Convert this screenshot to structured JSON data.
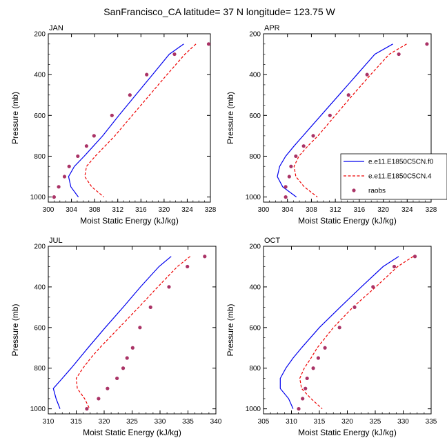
{
  "figure_title": "SanFrancisco_CA  latitude= 37 N longitude= 123.75 W",
  "colors": {
    "model_f": "#0000ee",
    "model_4": "#ee0000",
    "raobs": "#aa3366"
  },
  "legend": {
    "entries": [
      {
        "name": "e.e11.E1850C5CN.f0",
        "style": "solid",
        "color": "#0000ee"
      },
      {
        "name": "e.e11.E1850C5CN.4",
        "style": "dashed",
        "color": "#ee0000"
      },
      {
        "name": "raobs",
        "style": "marker",
        "color": "#aa3366"
      }
    ]
  },
  "chart_data": [
    {
      "type": "line",
      "panel_title": "JAN",
      "xlabel": "Moist Static Energy (kJ/kg)",
      "ylabel": "Pressure (mb)",
      "xlim": [
        300,
        328
      ],
      "ylim": [
        1025,
        200
      ],
      "xticks": [
        300,
        304,
        308,
        312,
        316,
        320,
        324,
        328
      ],
      "yticks": [
        200,
        400,
        600,
        800,
        1000
      ],
      "y": [
        250,
        300,
        400,
        500,
        600,
        700,
        750,
        800,
        850,
        900,
        950,
        1000
      ],
      "series": [
        {
          "name": "e.e11.E1850C5CN.f0",
          "style": "line",
          "x": [
            323.4,
            320.9,
            318.0,
            315.1,
            312.2,
            309.4,
            307.8,
            306.2,
            304.5,
            303.5,
            303.9,
            305.2
          ]
        },
        {
          "name": "e.e11.E1850C5CN.4",
          "style": "dashed",
          "x": [
            325.5,
            323.6,
            320.5,
            317.5,
            314.5,
            311.5,
            309.8,
            308.1,
            306.6,
            306.3,
            307.5,
            309.6
          ]
        },
        {
          "name": "raobs",
          "style": "scatter",
          "x": [
            327.7,
            321.8,
            317.0,
            314.1,
            311.0,
            307.9,
            306.6,
            305.1,
            303.6,
            302.8,
            301.8,
            301.0
          ]
        }
      ]
    },
    {
      "type": "line",
      "panel_title": "APR",
      "xlabel": "Moist Static Energy (kJ/kg)",
      "ylabel": "Pressure (mb)",
      "xlim": [
        300,
        328
      ],
      "ylim": [
        1025,
        200
      ],
      "xticks": [
        300,
        304,
        308,
        312,
        316,
        320,
        324,
        328
      ],
      "yticks": [
        200,
        400,
        600,
        800,
        1000
      ],
      "y": [
        250,
        300,
        400,
        500,
        600,
        700,
        750,
        800,
        850,
        900,
        950,
        1000
      ],
      "series": [
        {
          "name": "e.e11.E1850C5CN.f0",
          "style": "line",
          "x": [
            321.6,
            318.6,
            315.6,
            312.6,
            309.6,
            306.6,
            305.1,
            303.7,
            302.7,
            302.3,
            303.2,
            305.5
          ]
        },
        {
          "name": "e.e11.E1850C5CN.4",
          "style": "dashed",
          "x": [
            323.9,
            321.0,
            317.9,
            314.9,
            312.0,
            309.1,
            307.4,
            305.9,
            305.1,
            305.4,
            306.8,
            309.0
          ]
        },
        {
          "name": "raobs",
          "style": "scatter",
          "x": [
            327.3,
            322.6,
            317.3,
            314.2,
            311.1,
            308.3,
            306.7,
            305.4,
            304.6,
            304.3,
            303.7,
            303.7
          ]
        }
      ]
    },
    {
      "type": "line",
      "panel_title": "JUL",
      "xlabel": "Moist Static Energy (kJ/kg)",
      "ylabel": "Pressure (mb)",
      "xlim": [
        310,
        340
      ],
      "ylim": [
        1025,
        200
      ],
      "xticks": [
        310,
        315,
        320,
        325,
        330,
        335,
        340
      ],
      "yticks": [
        200,
        400,
        600,
        800,
        1000
      ],
      "y": [
        250,
        300,
        400,
        500,
        600,
        700,
        750,
        800,
        850,
        900,
        950,
        1000
      ],
      "series": [
        {
          "name": "e.e11.E1850C5CN.f0",
          "style": "line",
          "x": [
            332.0,
            329.8,
            326.5,
            323.4,
            320.2,
            317.1,
            315.6,
            314.1,
            312.5,
            310.9,
            311.4,
            312.1
          ]
        },
        {
          "name": "e.e11.E1850C5CN.4",
          "style": "dashed",
          "x": [
            335.4,
            333.1,
            329.6,
            326.2,
            322.7,
            319.2,
            317.6,
            316.2,
            315.0,
            315.2,
            316.5,
            317.4
          ]
        },
        {
          "name": "raobs",
          "style": "scatter",
          "x": [
            338.0,
            334.9,
            331.6,
            328.3,
            326.4,
            325.1,
            324.1,
            323.4,
            322.3,
            320.6,
            319.0,
            316.9
          ]
        }
      ]
    },
    {
      "type": "line",
      "panel_title": "OCT",
      "xlabel": "Moist Static Energy (kJ/kg)",
      "ylabel": "Pressure (mb)",
      "xlim": [
        305,
        335
      ],
      "ylim": [
        1025,
        200
      ],
      "xticks": [
        305,
        310,
        315,
        320,
        325,
        330,
        335
      ],
      "yticks": [
        200,
        400,
        600,
        800,
        1000
      ],
      "y": [
        250,
        300,
        400,
        500,
        600,
        700,
        750,
        800,
        850,
        900,
        950,
        1000
      ],
      "series": [
        {
          "name": "e.e11.E1850C5CN.f0",
          "style": "line",
          "x": [
            329.2,
            326.4,
            322.5,
            318.7,
            315.0,
            311.8,
            310.3,
            309.0,
            308.0,
            308.0,
            309.5,
            310.3
          ]
        },
        {
          "name": "e.e11.E1850C5CN.4",
          "style": "dashed",
          "x": [
            331.8,
            329.0,
            325.1,
            321.0,
            317.5,
            314.6,
            313.5,
            312.3,
            311.5,
            311.8,
            313.5,
            315.5
          ]
        },
        {
          "name": "raobs",
          "style": "scatter",
          "x": [
            332.1,
            328.4,
            324.6,
            321.3,
            318.6,
            316.0,
            314.8,
            313.9,
            312.8,
            312.5,
            312.0,
            311.3
          ]
        }
      ]
    }
  ]
}
